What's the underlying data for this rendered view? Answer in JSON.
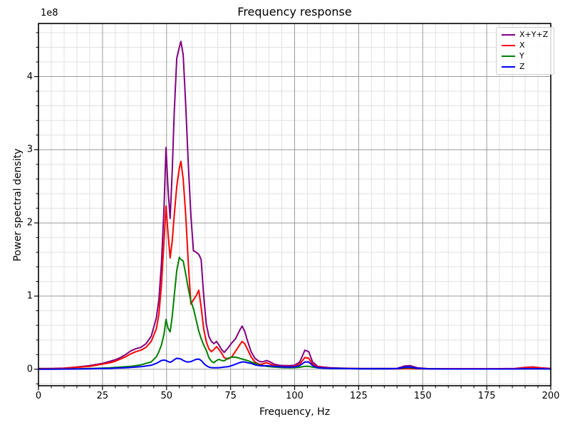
{
  "chart_data": {
    "type": "line",
    "title": "Frequency response",
    "xlabel": "Frequency, Hz",
    "ylabel": "Power spectral density",
    "y_offset_text": "1e8",
    "value_scale": 100000000.0,
    "xlim": [
      0,
      200
    ],
    "ylim_1e8": [
      -0.225,
      4.725
    ],
    "x_major_ticks": [
      0,
      25,
      50,
      75,
      100,
      125,
      150,
      175,
      200
    ],
    "y_major_ticks": [
      0,
      1,
      2,
      3,
      4
    ],
    "x_minor_step": 5,
    "y_minor_step": 0.2,
    "grid": "both",
    "legend_position": "upper right",
    "x": [
      0,
      5,
      10,
      15,
      20,
      25,
      28,
      30,
      32,
      34,
      36,
      38,
      40,
      42,
      44,
      46,
      47,
      48,
      49,
      49.8,
      50.6,
      51.4,
      52.2,
      53,
      54,
      55,
      55.6,
      56.5,
      57.5,
      58.5,
      59.5,
      60.5,
      61.5,
      62.6,
      63.5,
      64.5,
      65.5,
      66.5,
      67.5,
      68.5,
      69.5,
      70.5,
      71.5,
      72.5,
      74,
      75.5,
      77,
      78.5,
      79.5,
      80.5,
      81.5,
      83,
      84.5,
      86,
      87.5,
      89,
      90.5,
      92,
      94,
      96,
      98,
      100,
      102,
      104,
      105.5,
      107,
      109,
      111,
      114,
      118,
      122,
      126,
      130,
      135,
      140,
      143,
      145,
      148,
      152,
      158,
      165,
      172,
      180,
      186,
      190,
      193,
      196,
      200
    ],
    "series": [
      {
        "name": "X+Y+Z",
        "color": "#800080",
        "values": [
          0.01,
          0.01,
          0.015,
          0.03,
          0.05,
          0.08,
          0.11,
          0.13,
          0.16,
          0.2,
          0.25,
          0.28,
          0.3,
          0.35,
          0.45,
          0.7,
          0.95,
          1.45,
          2.2,
          3.03,
          2.45,
          2.06,
          2.7,
          3.5,
          4.25,
          4.4,
          4.48,
          4.3,
          3.6,
          2.8,
          2.1,
          1.62,
          1.6,
          1.57,
          1.5,
          1.0,
          0.62,
          0.45,
          0.38,
          0.35,
          0.38,
          0.33,
          0.27,
          0.23,
          0.29,
          0.36,
          0.42,
          0.53,
          0.59,
          0.52,
          0.4,
          0.24,
          0.15,
          0.11,
          0.1,
          0.12,
          0.1,
          0.07,
          0.055,
          0.05,
          0.05,
          0.055,
          0.1,
          0.26,
          0.24,
          0.1,
          0.04,
          0.03,
          0.02,
          0.015,
          0.012,
          0.01,
          0.01,
          0.01,
          0.012,
          0.045,
          0.05,
          0.02,
          0.008,
          0.007,
          0.007,
          0.007,
          0.008,
          0.01,
          0.025,
          0.032,
          0.02,
          0.01
        ]
      },
      {
        "name": "X",
        "color": "#ff0000",
        "values": [
          0.008,
          0.008,
          0.012,
          0.025,
          0.04,
          0.07,
          0.09,
          0.11,
          0.14,
          0.17,
          0.21,
          0.24,
          0.26,
          0.3,
          0.38,
          0.55,
          0.75,
          1.15,
          1.75,
          2.23,
          1.85,
          1.52,
          1.75,
          2.1,
          2.5,
          2.75,
          2.84,
          2.6,
          2.1,
          1.45,
          0.89,
          0.95,
          1.0,
          1.08,
          0.85,
          0.55,
          0.38,
          0.28,
          0.24,
          0.27,
          0.31,
          0.27,
          0.22,
          0.16,
          0.14,
          0.17,
          0.25,
          0.33,
          0.38,
          0.35,
          0.28,
          0.17,
          0.1,
          0.07,
          0.07,
          0.09,
          0.07,
          0.05,
          0.04,
          0.035,
          0.035,
          0.04,
          0.07,
          0.16,
          0.15,
          0.07,
          0.03,
          0.02,
          0.015,
          0.012,
          0.01,
          0.008,
          0.007,
          0.006,
          0.006,
          0.008,
          0.008,
          0.006,
          0.005,
          0.005,
          0.005,
          0.005,
          0.006,
          0.008,
          0.022,
          0.028,
          0.018,
          0.008
        ]
      },
      {
        "name": "Y",
        "color": "#008000",
        "values": [
          0.002,
          0.003,
          0.004,
          0.006,
          0.01,
          0.015,
          0.02,
          0.025,
          0.03,
          0.035,
          0.04,
          0.05,
          0.06,
          0.08,
          0.1,
          0.17,
          0.24,
          0.33,
          0.48,
          0.68,
          0.56,
          0.51,
          0.72,
          1.0,
          1.35,
          1.53,
          1.5,
          1.48,
          1.3,
          1.1,
          0.93,
          0.83,
          0.68,
          0.52,
          0.42,
          0.33,
          0.26,
          0.16,
          0.11,
          0.09,
          0.12,
          0.135,
          0.12,
          0.115,
          0.15,
          0.165,
          0.165,
          0.15,
          0.14,
          0.13,
          0.12,
          0.1,
          0.08,
          0.06,
          0.05,
          0.04,
          0.035,
          0.03,
          0.025,
          0.022,
          0.02,
          0.022,
          0.028,
          0.04,
          0.04,
          0.03,
          0.02,
          0.015,
          0.012,
          0.01,
          0.008,
          0.006,
          0.006,
          0.006,
          0.008,
          0.02,
          0.022,
          0.01,
          0.005,
          0.004,
          0.004,
          0.004,
          0.004,
          0.004,
          0.005,
          0.005,
          0.005,
          0.004
        ]
      },
      {
        "name": "Z",
        "color": "#0000ff",
        "values": [
          0.002,
          0.002,
          0.003,
          0.004,
          0.006,
          0.01,
          0.012,
          0.015,
          0.018,
          0.02,
          0.025,
          0.03,
          0.035,
          0.045,
          0.055,
          0.08,
          0.1,
          0.12,
          0.125,
          0.12,
          0.105,
          0.095,
          0.11,
          0.13,
          0.15,
          0.145,
          0.14,
          0.12,
          0.105,
          0.1,
          0.105,
          0.12,
          0.135,
          0.14,
          0.12,
          0.08,
          0.05,
          0.03,
          0.022,
          0.02,
          0.02,
          0.022,
          0.025,
          0.03,
          0.035,
          0.05,
          0.07,
          0.09,
          0.1,
          0.1,
          0.09,
          0.08,
          0.06,
          0.05,
          0.045,
          0.05,
          0.045,
          0.04,
          0.035,
          0.03,
          0.03,
          0.032,
          0.05,
          0.1,
          0.1,
          0.05,
          0.02,
          0.015,
          0.012,
          0.01,
          0.008,
          0.006,
          0.006,
          0.006,
          0.008,
          0.028,
          0.03,
          0.012,
          0.005,
          0.004,
          0.004,
          0.004,
          0.004,
          0.004,
          0.005,
          0.005,
          0.005,
          0.004
        ]
      }
    ],
    "style": {
      "major_grid_color": "#9b9b9b",
      "minor_grid_color": "#e0e0e0",
      "spine_color": "#000000",
      "line_width": 2
    }
  }
}
